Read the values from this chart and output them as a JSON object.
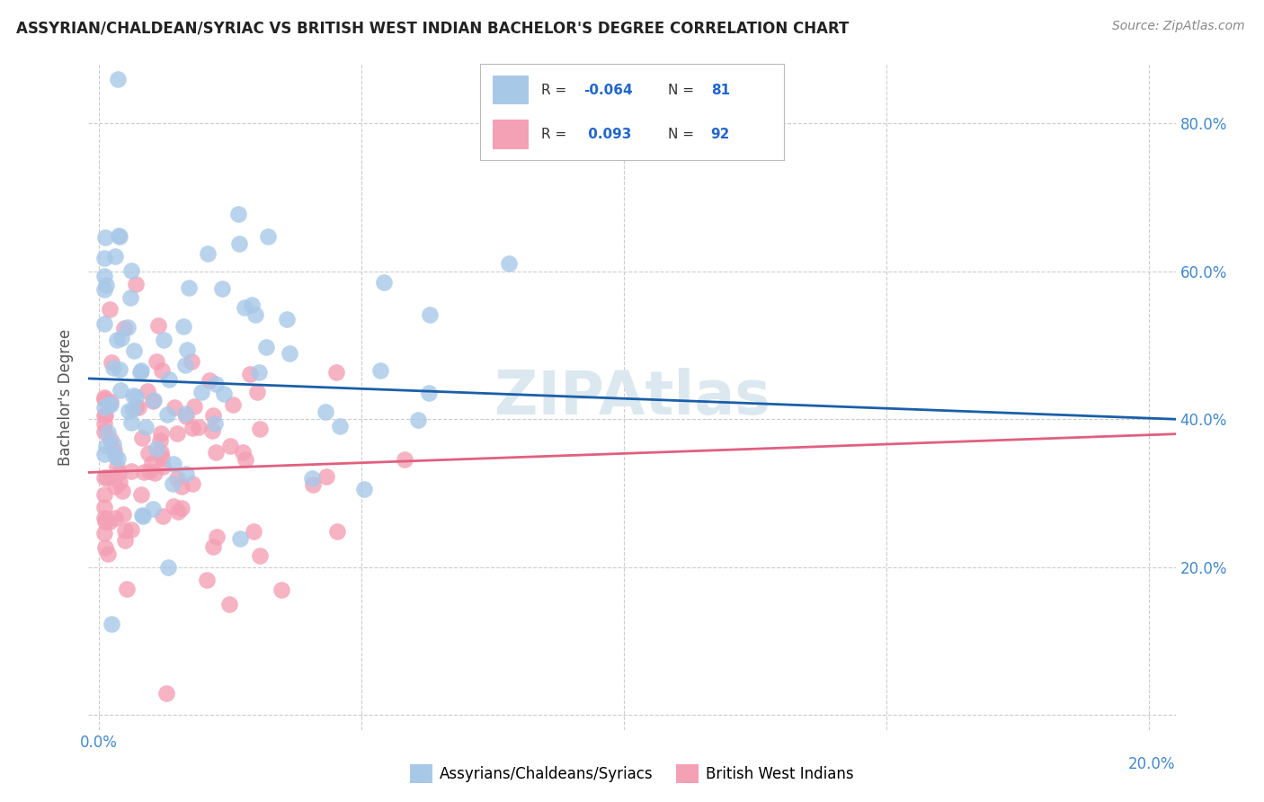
{
  "title": "ASSYRIAN/CHALDEAN/SYRIAC VS BRITISH WEST INDIAN BACHELOR'S DEGREE CORRELATION CHART",
  "source": "Source: ZipAtlas.com",
  "ylabel_label": "Bachelor's Degree",
  "xlim": [
    -0.002,
    0.205
  ],
  "ylim": [
    -0.02,
    0.88
  ],
  "blue_R": -0.064,
  "blue_N": 81,
  "pink_R": 0.093,
  "pink_N": 92,
  "blue_color": "#a8c8e8",
  "pink_color": "#f4a0b5",
  "blue_line_color": "#1a5fa8",
  "pink_line_color": "#e06080",
  "watermark": "ZIPAtlas",
  "watermark_color": "#dce8f0",
  "bg_color": "#ffffff",
  "grid_color": "#cccccc",
  "tick_color": "#4488cc",
  "title_color": "#222222"
}
